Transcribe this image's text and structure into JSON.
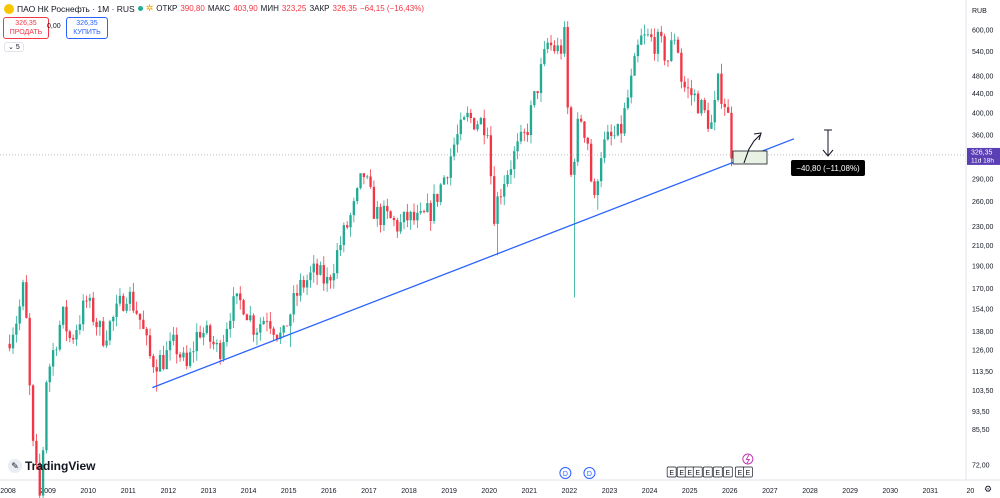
{
  "header": {
    "title": "ПАО НК Роснефть · 1М · RUS",
    "ohlc": [
      {
        "k": "ОТКР",
        "v": "390,80"
      },
      {
        "k": "МАКС",
        "v": "403,90"
      },
      {
        "k": "МИН",
        "v": "323,25"
      },
      {
        "k": "ЗАКР",
        "v": "326,35"
      },
      {
        "k": "",
        "v": "−64,15 (−16,43%)"
      }
    ],
    "sell_price": "326,35",
    "sell_label": "ПРОДАТЬ",
    "spread": "0,00",
    "buy_price": "326,35",
    "buy_label": "КУПИТЬ",
    "indicators_count": "5"
  },
  "branding": {
    "text": "TradingView"
  },
  "colors": {
    "up": "#22ab94",
    "down": "#f23645",
    "trendline": "#2962ff",
    "price_label": "#5b3fb5"
  },
  "chart_data": {
    "type": "candlestick",
    "currency": "RUB",
    "scale": "log",
    "ylim": [
      70,
      630
    ],
    "y_ticks": [
      "600,00",
      "540,00",
      "480,00",
      "440,00",
      "400,00",
      "360,00",
      "290,00",
      "260,00",
      "230,00",
      "210,00",
      "190,00",
      "170,00",
      "154,00",
      "138,00",
      "126,00",
      "113,50",
      "103,50",
      "93,50",
      "85,50",
      "72,00"
    ],
    "y_tick_values": [
      600,
      540,
      480,
      440,
      400,
      360,
      290,
      260,
      230,
      210,
      190,
      170,
      154,
      138,
      126,
      113.5,
      103.5,
      93.5,
      85.5,
      72
    ],
    "x_ticks": [
      "2008",
      "2009",
      "2010",
      "2011",
      "2012",
      "2013",
      "2014",
      "2015",
      "2016",
      "2017",
      "2018",
      "2019",
      "2020",
      "2021",
      "2022",
      "2023",
      "2024",
      "2025",
      "2026",
      "2027",
      "2028",
      "2029",
      "2030",
      "2031",
      "20"
    ],
    "last_price": {
      "value": "326,35",
      "countdown": "11d 18h"
    },
    "measure_label": "−40,80 (−11,08%)",
    "trendline": [
      {
        "year": 2011.6,
        "price": 105
      },
      {
        "year": 2027.6,
        "price": 353
      }
    ],
    "events": {
      "dividends": [
        2021.9,
        2022.5
      ],
      "earnings": [
        2024.55,
        2024.8,
        2025.0,
        2025.2,
        2025.45,
        2025.7,
        2025.95,
        2026.25,
        2026.45
      ],
      "dividend_marker": "D",
      "earnings_marker": "E"
    },
    "anchors": [
      [
        2008.0,
        130
      ],
      [
        2008.3,
        150
      ],
      [
        2008.45,
        175
      ],
      [
        2008.65,
        80
      ],
      [
        2008.85,
        60
      ],
      [
        2009.0,
        110
      ],
      [
        2009.4,
        150
      ],
      [
        2009.6,
        132
      ],
      [
        2010.0,
        160
      ],
      [
        2010.4,
        135
      ],
      [
        2010.7,
        148
      ],
      [
        2011.0,
        168
      ],
      [
        2011.3,
        150
      ],
      [
        2011.6,
        120
      ],
      [
        2011.9,
        120
      ],
      [
        2012.2,
        130
      ],
      [
        2012.5,
        115
      ],
      [
        2012.8,
        140
      ],
      [
        2013.0,
        135
      ],
      [
        2013.3,
        125
      ],
      [
        2013.6,
        155
      ],
      [
        2013.9,
        160
      ],
      [
        2014.2,
        140
      ],
      [
        2014.5,
        150
      ],
      [
        2014.9,
        132
      ],
      [
        2015.0,
        145
      ],
      [
        2015.3,
        170
      ],
      [
        2015.7,
        185
      ],
      [
        2016.0,
        175
      ],
      [
        2016.4,
        220
      ],
      [
        2016.7,
        255
      ],
      [
        2016.9,
        300
      ],
      [
        2017.2,
        245
      ],
      [
        2017.5,
        240
      ],
      [
        2017.8,
        230
      ],
      [
        2018.0,
        240
      ],
      [
        2018.3,
        235
      ],
      [
        2018.6,
        250
      ],
      [
        2018.9,
        290
      ],
      [
        2019.2,
        350
      ],
      [
        2019.5,
        390
      ],
      [
        2019.8,
        385
      ],
      [
        2020.0,
        380
      ],
      [
        2020.15,
        245
      ],
      [
        2020.4,
        290
      ],
      [
        2020.7,
        330
      ],
      [
        2020.95,
        360
      ],
      [
        2021.2,
        440
      ],
      [
        2021.5,
        560
      ],
      [
        2021.8,
        540
      ],
      [
        2021.95,
        590
      ],
      [
        2022.05,
        280
      ],
      [
        2022.3,
        400
      ],
      [
        2022.5,
        350
      ],
      [
        2022.65,
        250
      ],
      [
        2022.8,
        330
      ],
      [
        2023.0,
        350
      ],
      [
        2023.3,
        360
      ],
      [
        2023.6,
        470
      ],
      [
        2023.8,
        570
      ],
      [
        2024.0,
        575
      ],
      [
        2024.3,
        560
      ],
      [
        2024.5,
        520
      ],
      [
        2024.7,
        600
      ],
      [
        2024.85,
        460
      ],
      [
        2025.0,
        445
      ],
      [
        2025.2,
        430
      ],
      [
        2025.4,
        400
      ],
      [
        2025.6,
        375
      ],
      [
        2025.75,
        460
      ],
      [
        2025.9,
        430
      ],
      [
        2026.0,
        391
      ],
      [
        2026.1,
        326.35
      ]
    ]
  }
}
